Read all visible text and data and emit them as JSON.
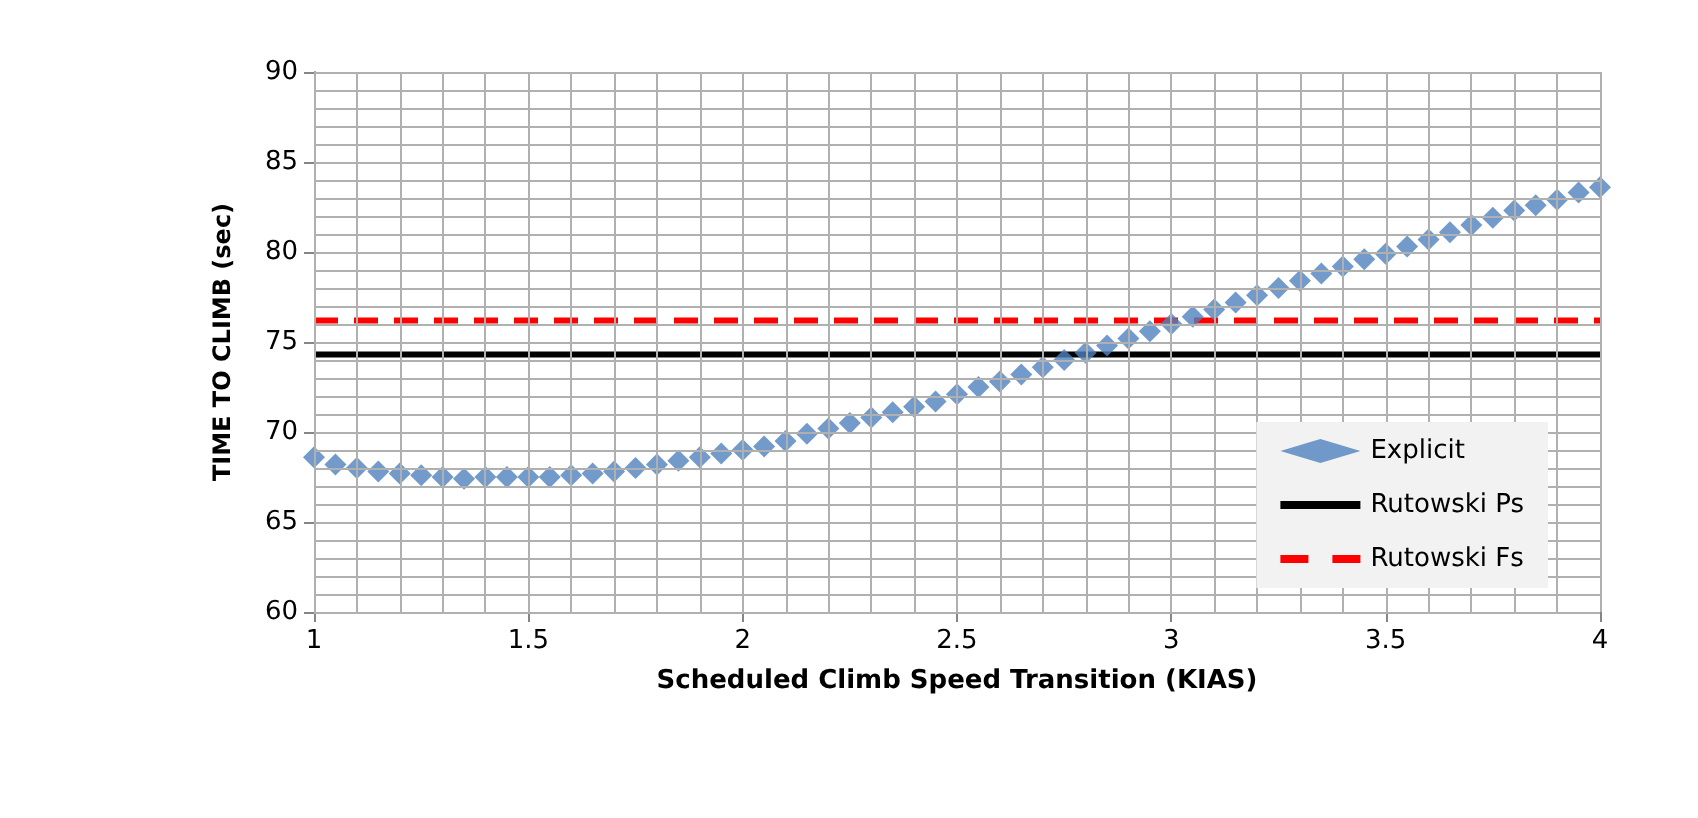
{
  "chart_data": {
    "type": "line",
    "xlabel": "Scheduled Climb Speed Transition (KIAS)",
    "ylabel": "TIME TO CLIMB (sec)",
    "xlim": [
      1,
      4
    ],
    "ylim": [
      60,
      90
    ],
    "xticks": [
      1,
      {
        "value": 1.1,
        "label": null
      },
      {
        "value": 1.2,
        "label": null
      },
      {
        "value": 1.3,
        "label": null
      },
      {
        "value": 1.4,
        "label": null
      },
      1.5,
      {
        "value": 1.6,
        "label": null
      },
      {
        "value": 1.7,
        "label": null
      },
      {
        "value": 1.8,
        "label": null
      },
      {
        "value": 1.9,
        "label": null
      },
      2,
      {
        "value": 2.1,
        "label": null
      },
      {
        "value": 2.2,
        "label": null
      },
      {
        "value": 2.3,
        "label": null
      },
      {
        "value": 2.4,
        "label": null
      },
      2.5,
      {
        "value": 2.6,
        "label": null
      },
      {
        "value": 2.7,
        "label": null
      },
      {
        "value": 2.8,
        "label": null
      },
      {
        "value": 2.9,
        "label": null
      },
      3,
      {
        "value": 3.1,
        "label": null
      },
      {
        "value": 3.2,
        "label": null
      },
      {
        "value": 3.3,
        "label": null
      },
      {
        "value": 3.4,
        "label": null
      },
      3.5,
      {
        "value": 3.6,
        "label": null
      },
      {
        "value": 3.7,
        "label": null
      },
      {
        "value": 3.8,
        "label": null
      },
      {
        "value": 3.9,
        "label": null
      },
      4
    ],
    "yticks": [
      60,
      {
        "value": 61,
        "label": null
      },
      {
        "value": 62,
        "label": null
      },
      {
        "value": 63,
        "label": null
      },
      {
        "value": 64,
        "label": null
      },
      65,
      {
        "value": 66,
        "label": null
      },
      {
        "value": 67,
        "label": null
      },
      {
        "value": 68,
        "label": null
      },
      {
        "value": 69,
        "label": null
      },
      70,
      {
        "value": 71,
        "label": null
      },
      {
        "value": 72,
        "label": null
      },
      {
        "value": 73,
        "label": null
      },
      {
        "value": 74,
        "label": null
      },
      75,
      {
        "value": 76,
        "label": null
      },
      {
        "value": 77,
        "label": null
      },
      {
        "value": 78,
        "label": null
      },
      {
        "value": 79,
        "label": null
      },
      80,
      {
        "value": 81,
        "label": null
      },
      {
        "value": 82,
        "label": null
      },
      {
        "value": 83,
        "label": null
      },
      {
        "value": 84,
        "label": null
      },
      85,
      {
        "value": 86,
        "label": null
      },
      {
        "value": 87,
        "label": null
      },
      {
        "value": 88,
        "label": null
      },
      {
        "value": 89,
        "label": null
      },
      90
    ],
    "grid": true,
    "legend": "bottom right",
    "series": [
      {
        "name": "Explicit",
        "type": "scatter",
        "marker": "diamond",
        "color": "#4f81bd",
        "x": [
          1,
          1.05,
          1.1,
          1.15,
          1.2,
          1.25,
          1.3,
          1.35,
          1.4,
          1.45,
          1.5,
          1.55,
          1.6,
          1.65,
          1.7,
          1.75,
          1.8,
          1.85,
          1.9,
          1.95,
          2,
          2.05,
          2.1,
          2.15,
          2.2,
          2.25,
          2.3,
          2.35,
          2.4,
          2.45,
          2.5,
          2.55,
          2.6,
          2.65,
          2.7,
          2.75,
          2.8,
          2.85,
          2.9,
          2.95,
          3,
          3.05,
          3.1,
          3.15,
          3.2,
          3.25,
          3.3,
          3.35,
          3.4,
          3.45,
          3.5,
          3.55,
          3.6,
          3.65,
          3.7,
          3.75,
          3.8,
          3.85,
          3.9,
          3.95,
          4
        ],
        "values": [
          68.6,
          68.2,
          68.0,
          67.8,
          67.7,
          67.6,
          67.5,
          67.4,
          67.5,
          67.5,
          67.5,
          67.5,
          67.6,
          67.7,
          67.8,
          68.0,
          68.2,
          68.4,
          68.6,
          68.8,
          69.0,
          69.2,
          69.5,
          69.9,
          70.2,
          70.5,
          70.8,
          71.1,
          71.4,
          71.7,
          72.1,
          72.5,
          72.8,
          73.2,
          73.6,
          74.0,
          74.4,
          74.8,
          75.2,
          75.6,
          76.0,
          76.4,
          76.8,
          77.2,
          77.6,
          78.0,
          78.4,
          78.8,
          79.2,
          79.6,
          79.9,
          80.3,
          80.7,
          81.1,
          81.5,
          81.9,
          82.3,
          82.6,
          82.9,
          83.3,
          83.6
        ]
      },
      {
        "name": "Rutowski Ps",
        "marker": "none",
        "line_style": "solid",
        "color": "#000000",
        "x": [
          1,
          4
        ],
        "values": [
          74.3,
          74.3
        ]
      },
      {
        "name": "Rutowski Fs",
        "marker": "none",
        "line_style": "dashed",
        "color": "#ff0000",
        "x": [
          1,
          4
        ],
        "values": [
          76.2,
          76.2
        ]
      }
    ]
  }
}
